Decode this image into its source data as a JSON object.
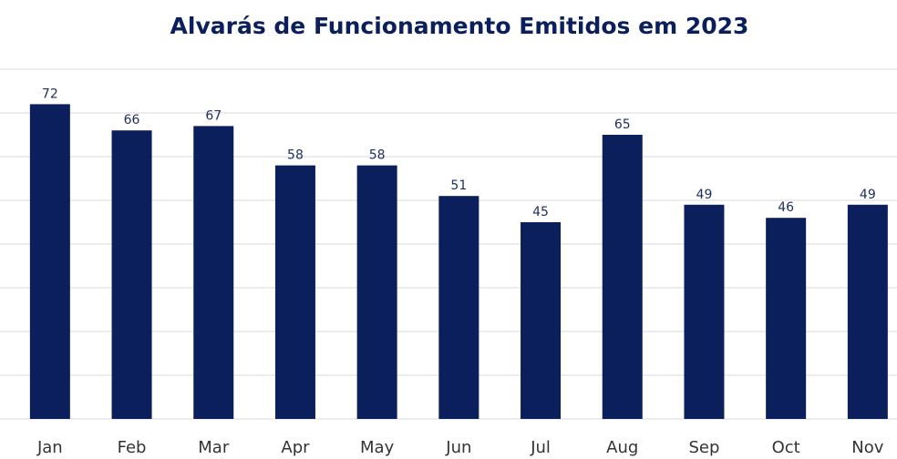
{
  "chart_data": {
    "type": "bar",
    "title": "Alvarás de Funcionamento Emitidos em 2023",
    "categories": [
      "Jan",
      "Feb",
      "Mar",
      "Apr",
      "May",
      "Jun",
      "Jul",
      "Aug",
      "Sep",
      "Oct",
      "Nov"
    ],
    "values": [
      72,
      66,
      67,
      58,
      58,
      51,
      45,
      65,
      49,
      46,
      49
    ],
    "color": "#0a1f5c",
    "ylim": [
      0,
      80
    ],
    "yticks": [
      0,
      10,
      20,
      30,
      40,
      50,
      60,
      70,
      80
    ],
    "grid": true
  }
}
